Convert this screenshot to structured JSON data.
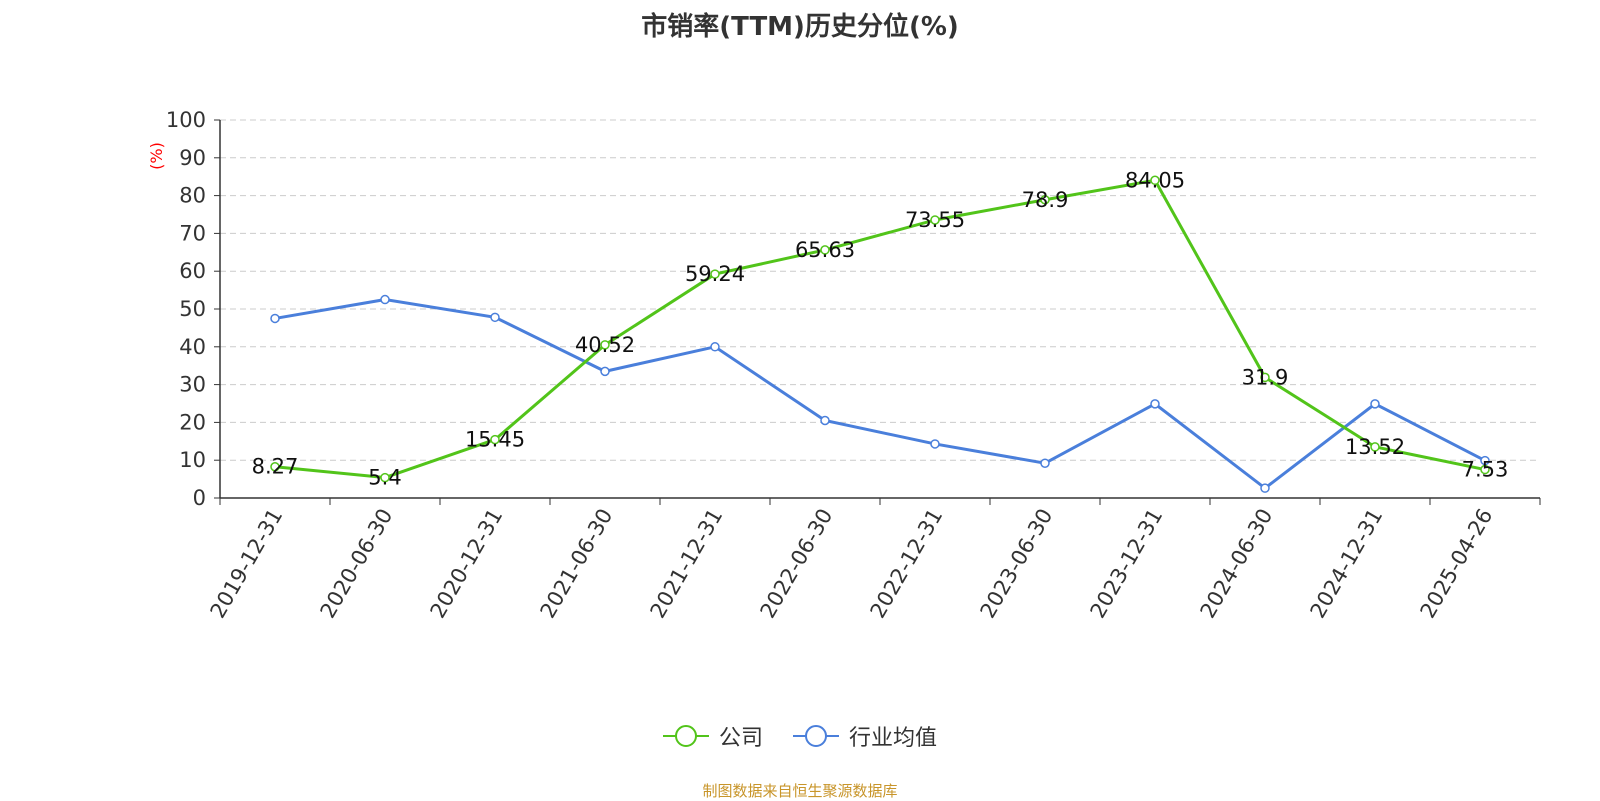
{
  "chart_data": {
    "type": "line",
    "title": "市销率(TTM)历史分位(%)",
    "ylabel": "(%)",
    "xlabel": "",
    "ylim": [
      0,
      100
    ],
    "yticks": [
      "0",
      "10",
      "20",
      "30",
      "40",
      "50",
      "60",
      "70",
      "80",
      "90",
      "100"
    ],
    "categories": [
      "2019-12-31",
      "2020-06-30",
      "2020-12-31",
      "2021-06-30",
      "2021-12-31",
      "2022-06-30",
      "2022-12-31",
      "2023-06-30",
      "2023-12-31",
      "2024-06-30",
      "2024-12-31",
      "2025-04-26"
    ],
    "series": [
      {
        "name": "公司",
        "color": "#52c41a",
        "values": [
          8.27,
          5.4,
          15.45,
          40.52,
          59.24,
          65.63,
          73.55,
          78.9,
          84.05,
          31.9,
          13.52,
          7.53
        ],
        "labels": [
          "8.27",
          "5.4",
          "15.45",
          "40.52",
          "59.24",
          "65.63",
          "73.55",
          "78.9",
          "84.05",
          "31.9",
          "13.52",
          "7.53"
        ]
      },
      {
        "name": "行业均值",
        "color": "#4a7fdb",
        "values": [
          47.5,
          52.5,
          47.8,
          33.5,
          40,
          20.5,
          14.3,
          9.2,
          24.9,
          2.6,
          24.9,
          9.9
        ]
      }
    ],
    "grid": true,
    "legend_position": "bottom-center"
  },
  "source_text": "制图数据来自恒生聚源数据库",
  "colors": {
    "axis": "#333333",
    "grid": "#cccccc",
    "ylabel": "#ff0000",
    "source": "#c8952a"
  }
}
